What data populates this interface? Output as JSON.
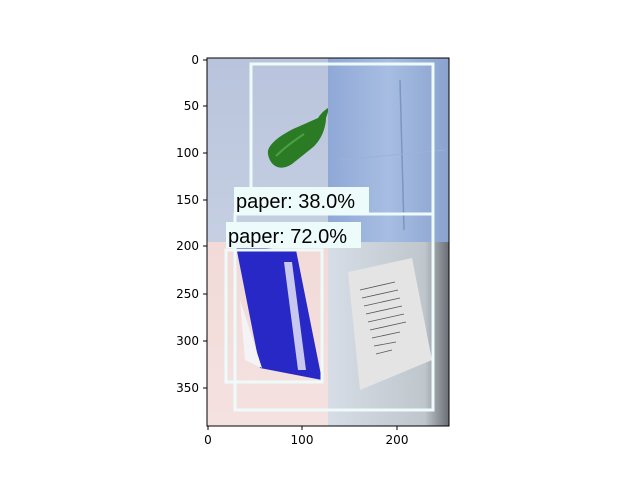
{
  "axes": {
    "x_ticks": [
      "0",
      "100",
      "200"
    ],
    "y_ticks": [
      "0",
      "50",
      "100",
      "150",
      "200",
      "250",
      "300",
      "350"
    ]
  },
  "detections": [
    {
      "label": "paper: 38.0%",
      "class": "paper",
      "score": 38.0
    },
    {
      "label": "paper: 72.0%",
      "class": "paper",
      "score": 72.0
    }
  ],
  "colors": {
    "box": "#eefbfb",
    "label_bg": "#eefbfb"
  }
}
